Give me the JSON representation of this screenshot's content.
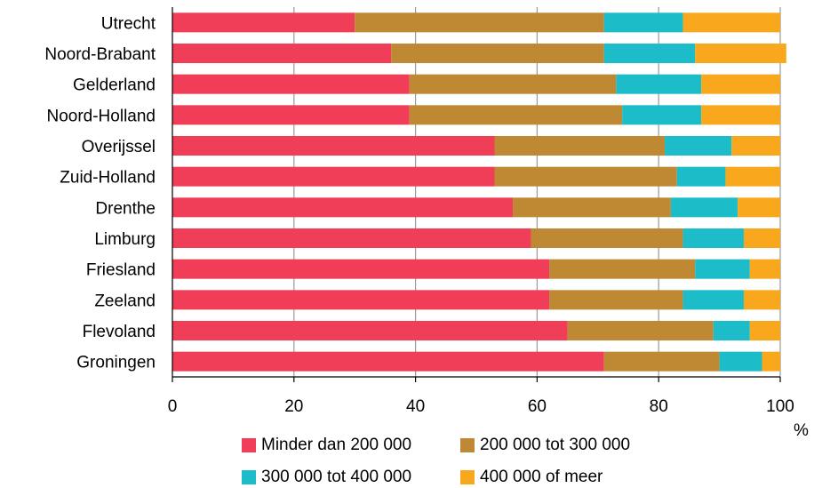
{
  "chart_data": {
    "type": "bar",
    "orientation": "horizontal",
    "stacked": true,
    "categories": [
      "Utrecht",
      "Noord-Brabant",
      "Gelderland",
      "Noord-Holland",
      "Overijssel",
      "Zuid-Holland",
      "Drenthe",
      "Limburg",
      "Friesland",
      "Zeeland",
      "Flevoland",
      "Groningen"
    ],
    "series": [
      {
        "name": "Minder dan 200 000",
        "color": "#f03e58",
        "values": [
          30,
          36,
          39,
          39,
          53,
          53,
          56,
          59,
          62,
          62,
          65,
          71
        ]
      },
      {
        "name": "200 000 tot 300 000",
        "color": "#bf8832",
        "values": [
          41,
          35,
          34,
          35,
          28,
          30,
          26,
          25,
          24,
          22,
          24,
          19
        ]
      },
      {
        "name": "300 000 tot 400 000",
        "color": "#1dbcc9",
        "values": [
          13,
          15,
          14,
          13,
          11,
          8,
          11,
          10,
          9,
          10,
          6,
          7
        ]
      },
      {
        "name": "400 000 of meer",
        "color": "#f9a81e",
        "values": [
          16,
          15,
          13,
          13,
          8,
          9,
          7,
          6,
          5,
          6,
          5,
          3
        ]
      }
    ],
    "xlabel": "%",
    "xlim": [
      0,
      100
    ],
    "xticks": [
      "0",
      "20",
      "40",
      "60",
      "80",
      "100"
    ],
    "grid": true,
    "legend_position": "bottom"
  }
}
